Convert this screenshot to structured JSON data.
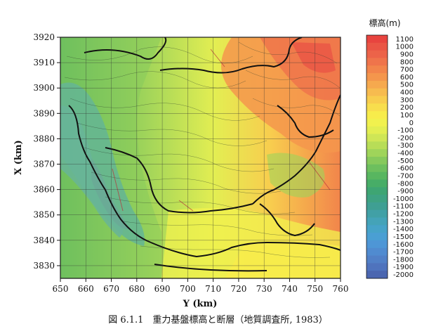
{
  "chart_data": {
    "type": "heatmap",
    "xlabel": "Y (km)",
    "ylabel": "X (km)",
    "xlim": [
      650,
      760
    ],
    "ylim": [
      3825,
      3920
    ],
    "x_ticks": [
      650,
      660,
      670,
      680,
      690,
      700,
      710,
      720,
      730,
      740,
      750,
      760
    ],
    "y_ticks": [
      3830,
      3840,
      3850,
      3860,
      3870,
      3880,
      3890,
      3900,
      3910,
      3920
    ],
    "grid": true,
    "legend": {
      "title": "標高(m)",
      "placement": "right",
      "levels": [
        1100,
        1000,
        900,
        800,
        700,
        600,
        500,
        400,
        300,
        200,
        100,
        0,
        -100,
        -200,
        -300,
        -400,
        -500,
        -600,
        -700,
        -800,
        -900,
        -1000,
        -1100,
        -1200,
        -1300,
        -1400,
        -1500,
        -1600,
        -1700,
        -1800,
        -1900,
        -2000
      ],
      "colors": [
        "#e8443f",
        "#ea5545",
        "#ec6349",
        "#ef744b",
        "#f2854b",
        "#f4964c",
        "#f6a94e",
        "#f7bb4f",
        "#f8cd4e",
        "#f8de4d",
        "#f7ec4b",
        "#f1f14e",
        "#e3ee52",
        "#cfe656",
        "#b8dd57",
        "#9fd45a",
        "#86c95c",
        "#6dbf5e",
        "#58b660",
        "#47ad67",
        "#3ea573",
        "#3ea282",
        "#3f9f93",
        "#41a0a6",
        "#44a3b8",
        "#46a3c8",
        "#4a9fd3",
        "#4e96d6",
        "#508bd0",
        "#5180c7",
        "#4f73bd",
        "#4b66b0"
      ]
    }
  },
  "caption": "図 6.1.1　重力基盤標高と断層（地質調査所, 1983）"
}
